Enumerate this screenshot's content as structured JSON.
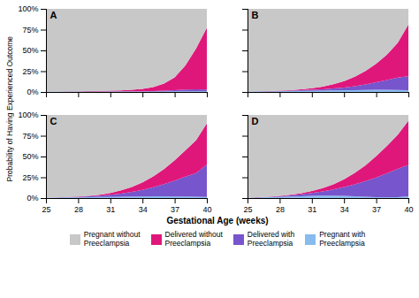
{
  "chart_data": [
    {
      "type": "area",
      "stacked": true,
      "title": "A",
      "xlabel": "Gestational Age (weeks)",
      "ylabel": "Probability of Having Experienced Outcome",
      "legend": "bottom",
      "tick_labels": "y",
      "x": [
        25,
        26,
        27,
        28,
        29,
        30,
        31,
        32,
        33,
        34,
        35,
        36,
        37,
        38,
        39,
        40
      ],
      "xlim": [
        25,
        40
      ],
      "xticks": [
        25,
        28,
        31,
        34,
        37,
        40
      ],
      "ylim": [
        0,
        1.0
      ],
      "yticks": [
        {
          "value": 0,
          "label": "0%"
        },
        {
          "value": 0.25,
          "label": "25%"
        },
        {
          "value": 0.5,
          "label": "50%"
        },
        {
          "value": 0.75,
          "label": "75%"
        },
        {
          "value": 1.0,
          "label": "100%"
        }
      ],
      "series": [
        {
          "name": "Pregnant with\nPreeclampsia",
          "color": "#88BBEE",
          "values": [
            0.005,
            0.005,
            0.005,
            0.005,
            0.005,
            0.005,
            0.005,
            0.005,
            0.005,
            0.005,
            0.005,
            0.006,
            0.007,
            0.008,
            0.008,
            0.007
          ]
        },
        {
          "name": "Delivered with\nPreeclampsia",
          "color": "#7755CC",
          "values": [
            0.0,
            0.0,
            0.001,
            0.001,
            0.001,
            0.001,
            0.002,
            0.002,
            0.003,
            0.004,
            0.006,
            0.009,
            0.014,
            0.02,
            0.025,
            0.022
          ]
        },
        {
          "name": "Delivered without\nPreeclampsia",
          "color": "#E0177B",
          "values": [
            0.0,
            0.001,
            0.002,
            0.003,
            0.004,
            0.006,
            0.008,
            0.012,
            0.018,
            0.028,
            0.048,
            0.085,
            0.155,
            0.29,
            0.49,
            0.745
          ]
        },
        {
          "name": "Pregnant without\nPreeclampsia",
          "color": "#C8C8C8",
          "values": [
            0.995,
            0.994,
            0.992,
            0.991,
            0.99,
            0.988,
            0.985,
            0.981,
            0.974,
            0.963,
            0.941,
            0.9,
            0.824,
            0.682,
            0.477,
            0.226
          ]
        }
      ]
    },
    {
      "type": "area",
      "stacked": true,
      "title": "B",
      "tick_labels": false,
      "x": [
        25,
        26,
        27,
        28,
        29,
        30,
        31,
        32,
        33,
        34,
        35,
        36,
        37,
        38,
        39,
        40
      ],
      "xlim": [
        25,
        40
      ],
      "xticks": [
        25,
        28,
        31,
        34,
        37,
        40
      ],
      "ylim": [
        0,
        1.0
      ],
      "yticks": [
        {
          "value": 0,
          "label": "0%"
        },
        {
          "value": 0.25,
          "label": "25%"
        },
        {
          "value": 0.5,
          "label": "50%"
        },
        {
          "value": 0.75,
          "label": "75%"
        },
        {
          "value": 1.0,
          "label": "100%"
        }
      ],
      "series": [
        {
          "name": "Pregnant with\nPreeclampsia",
          "color": "#88BBEE",
          "values": [
            0.005,
            0.006,
            0.007,
            0.008,
            0.01,
            0.012,
            0.014,
            0.016,
            0.018,
            0.02,
            0.022,
            0.024,
            0.026,
            0.026,
            0.024,
            0.02
          ]
        },
        {
          "name": "Delivered with\nPreeclampsia",
          "color": "#7755CC",
          "values": [
            0.0,
            0.001,
            0.002,
            0.003,
            0.005,
            0.008,
            0.012,
            0.017,
            0.024,
            0.034,
            0.048,
            0.066,
            0.09,
            0.118,
            0.148,
            0.17
          ]
        },
        {
          "name": "Delivered without\nPreeclampsia",
          "color": "#E0177B",
          "values": [
            0.0,
            0.001,
            0.002,
            0.004,
            0.007,
            0.012,
            0.02,
            0.032,
            0.05,
            0.076,
            0.114,
            0.162,
            0.224,
            0.306,
            0.418,
            0.62
          ]
        },
        {
          "name": "Pregnant without\nPreeclampsia",
          "color": "#C8C8C8",
          "values": [
            0.995,
            0.992,
            0.989,
            0.985,
            0.978,
            0.968,
            0.954,
            0.935,
            0.908,
            0.87,
            0.816,
            0.748,
            0.66,
            0.55,
            0.41,
            0.19
          ]
        }
      ]
    },
    {
      "type": "area",
      "stacked": true,
      "title": "C",
      "x": [
        25,
        26,
        27,
        28,
        29,
        30,
        31,
        32,
        33,
        34,
        35,
        36,
        37,
        38,
        39,
        40
      ],
      "xlim": [
        25,
        40
      ],
      "xticks": [
        25,
        28,
        31,
        34,
        37,
        40
      ],
      "ylim": [
        0,
        1.0
      ],
      "yticks": [
        {
          "value": 0,
          "label": "0%"
        },
        {
          "value": 0.25,
          "label": "25%"
        },
        {
          "value": 0.5,
          "label": "50%"
        },
        {
          "value": 0.75,
          "label": "75%"
        },
        {
          "value": 1.0,
          "label": "100%"
        }
      ],
      "series": [
        {
          "name": "Pregnant with\nPreeclampsia",
          "color": "#88BBEE",
          "values": [
            0.005,
            0.006,
            0.007,
            0.008,
            0.01,
            0.012,
            0.014,
            0.016,
            0.018,
            0.019,
            0.02,
            0.02,
            0.019,
            0.018,
            0.016,
            0.013
          ]
        },
        {
          "name": "Delivered with\nPreeclampsia",
          "color": "#7755CC",
          "values": [
            0.0,
            0.001,
            0.003,
            0.006,
            0.01,
            0.016,
            0.025,
            0.038,
            0.056,
            0.08,
            0.11,
            0.148,
            0.192,
            0.24,
            0.285,
            0.39
          ]
        },
        {
          "name": "Delivered without\nPreeclampsia",
          "color": "#E0177B",
          "values": [
            0.0,
            0.001,
            0.002,
            0.004,
            0.007,
            0.013,
            0.022,
            0.038,
            0.06,
            0.09,
            0.13,
            0.18,
            0.244,
            0.316,
            0.395,
            0.497
          ]
        },
        {
          "name": "Pregnant without\nPreeclampsia",
          "color": "#C8C8C8",
          "values": [
            0.995,
            0.992,
            0.988,
            0.982,
            0.973,
            0.959,
            0.939,
            0.908,
            0.866,
            0.811,
            0.74,
            0.652,
            0.545,
            0.426,
            0.304,
            0.1
          ]
        }
      ]
    },
    {
      "type": "area",
      "stacked": true,
      "title": "D",
      "tick_labels": "x",
      "x": [
        25,
        26,
        27,
        28,
        29,
        30,
        31,
        32,
        33,
        34,
        35,
        36,
        37,
        38,
        39,
        40
      ],
      "xlim": [
        25,
        40
      ],
      "xticks": [
        25,
        28,
        31,
        34,
        37,
        40
      ],
      "ylim": [
        0,
        1.0
      ],
      "yticks": [
        {
          "value": 0,
          "label": "0%"
        },
        {
          "value": 0.25,
          "label": "25%"
        },
        {
          "value": 0.5,
          "label": "50%"
        },
        {
          "value": 0.75,
          "label": "75%"
        },
        {
          "value": 1.0,
          "label": "100%"
        }
      ],
      "series": [
        {
          "name": "Pregnant with\nPreeclampsia",
          "color": "#88BBEE",
          "values": [
            0.005,
            0.007,
            0.01,
            0.014,
            0.018,
            0.022,
            0.026,
            0.028,
            0.028,
            0.026,
            0.022,
            0.016,
            0.01,
            0.008,
            0.01,
            0.02
          ]
        },
        {
          "name": "Delivered with\nPreeclampsia",
          "color": "#7755CC",
          "values": [
            0.0,
            0.002,
            0.004,
            0.008,
            0.014,
            0.022,
            0.034,
            0.052,
            0.076,
            0.106,
            0.144,
            0.188,
            0.238,
            0.29,
            0.34,
            0.38
          ]
        },
        {
          "name": "Delivered without\nPreeclampsia",
          "color": "#E0177B",
          "values": [
            0.0,
            0.001,
            0.002,
            0.004,
            0.008,
            0.014,
            0.024,
            0.04,
            0.062,
            0.094,
            0.136,
            0.19,
            0.256,
            0.33,
            0.41,
            0.53
          ]
        },
        {
          "name": "Pregnant without\nPreeclampsia",
          "color": "#C8C8C8",
          "values": [
            0.995,
            0.99,
            0.984,
            0.974,
            0.96,
            0.942,
            0.916,
            0.88,
            0.834,
            0.774,
            0.698,
            0.606,
            0.496,
            0.372,
            0.24,
            0.07
          ]
        }
      ]
    }
  ]
}
